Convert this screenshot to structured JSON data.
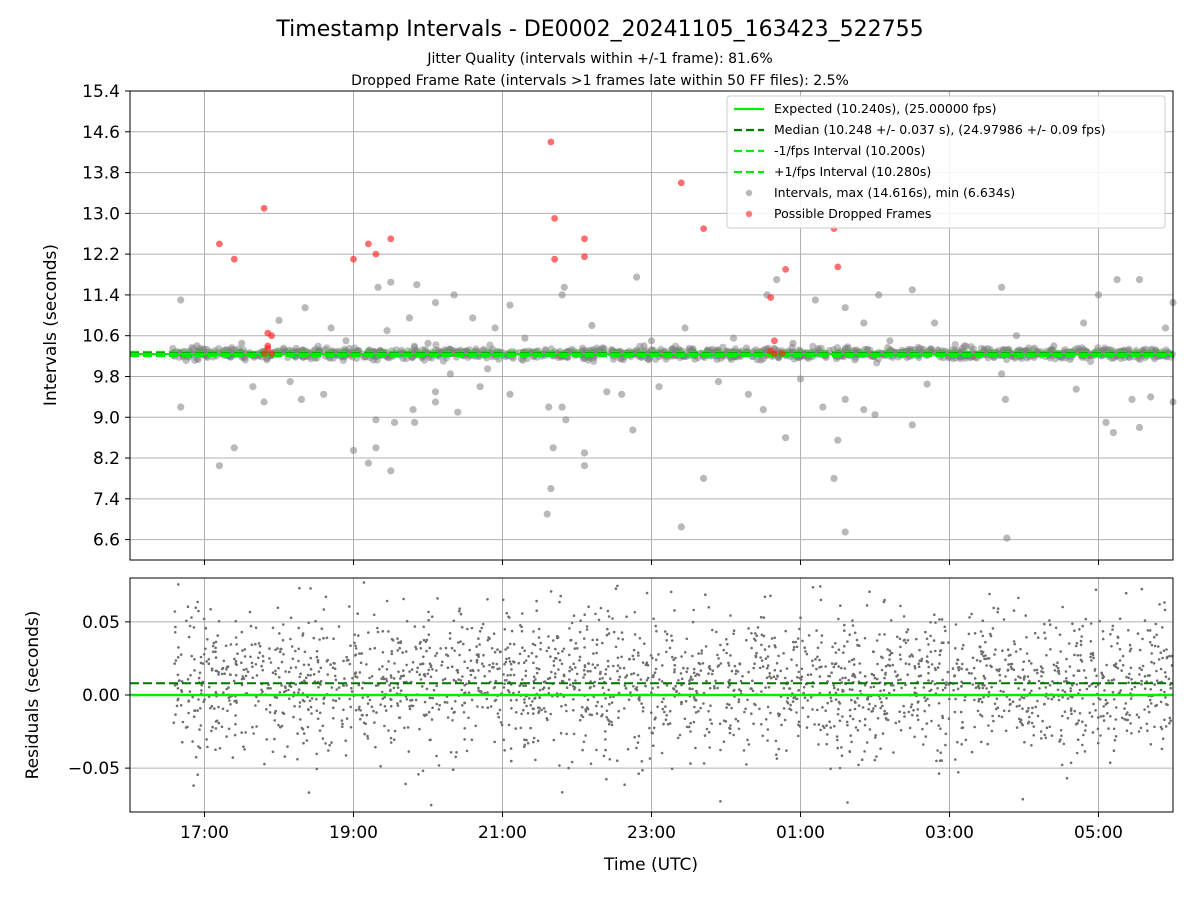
{
  "header": {
    "title": "Timestamp Intervals - DE0002_20241105_163423_522755",
    "subtitle1": "Jitter Quality (intervals within +/-1 frame): 81.6%",
    "subtitle2": "Dropped Frame Rate (intervals >1 frames late within 50 FF files): 2.5%"
  },
  "colors": {
    "expected": "#00ee00",
    "median": "#007700",
    "interval": "#00ee00",
    "points": "#808080",
    "dropped": "#ff2222"
  },
  "chart_data": [
    {
      "type": "scatter",
      "ylabel": "Intervals (seconds)",
      "x_range_hours": [
        16.0,
        30.0
      ],
      "ylim": [
        6.2,
        15.4
      ],
      "yticks": [
        6.6,
        7.4,
        8.2,
        9.0,
        9.8,
        10.6,
        11.4,
        12.2,
        13.0,
        13.8,
        14.6,
        15.4
      ],
      "ytick_labels": [
        "6.6",
        "7.4",
        "8.2",
        "9.0",
        "9.8",
        "10.6",
        "11.4",
        "12.2",
        "13.0",
        "13.8",
        "14.6",
        "15.4"
      ],
      "grid": true,
      "legend_position": "top-right",
      "lines": {
        "expected": 10.24,
        "median": 10.248,
        "minus_interval": 10.2,
        "plus_interval": 10.28
      },
      "legend": [
        {
          "key": "expected",
          "label": "Expected (10.240s), (25.00000 fps)"
        },
        {
          "key": "median",
          "label": "Median (10.248 +/- 0.037 s), (24.97986 +/- 0.09 fps)"
        },
        {
          "key": "minus",
          "label": "-1/fps Interval (10.200s)"
        },
        {
          "key": "plus",
          "label": "+1/fps Interval (10.280s)"
        },
        {
          "key": "intervals",
          "label": "Intervals, max (14.616s), min (6.634s)"
        },
        {
          "key": "dropped",
          "label": "Possible Dropped Frames"
        }
      ],
      "data_start_hour": 16.57,
      "data_end_hour": 30.0,
      "outliers": [
        [
          16.68,
          11.3
        ],
        [
          16.68,
          9.2
        ],
        [
          17.2,
          8.05
        ],
        [
          17.4,
          8.4
        ],
        [
          17.65,
          9.6
        ],
        [
          17.8,
          9.3
        ],
        [
          18.0,
          10.9
        ],
        [
          18.15,
          9.7
        ],
        [
          18.3,
          9.35
        ],
        [
          18.35,
          11.15
        ],
        [
          18.6,
          9.45
        ],
        [
          18.7,
          10.75
        ],
        [
          19.0,
          8.35
        ],
        [
          19.2,
          8.1
        ],
        [
          19.3,
          8.95
        ],
        [
          19.33,
          11.55
        ],
        [
          19.3,
          8.4
        ],
        [
          19.45,
          10.7
        ],
        [
          19.5,
          7.95
        ],
        [
          19.55,
          8.9
        ],
        [
          19.5,
          11.65
        ],
        [
          19.75,
          10.95
        ],
        [
          19.8,
          9.15
        ],
        [
          19.82,
          8.9
        ],
        [
          19.85,
          11.6
        ],
        [
          20.1,
          11.25
        ],
        [
          20.1,
          9.5
        ],
        [
          20.1,
          9.3
        ],
        [
          20.3,
          9.85
        ],
        [
          20.35,
          11.4
        ],
        [
          20.4,
          9.1
        ],
        [
          20.6,
          10.95
        ],
        [
          20.7,
          9.6
        ],
        [
          20.8,
          9.95
        ],
        [
          20.9,
          10.75
        ],
        [
          21.1,
          11.2
        ],
        [
          21.1,
          9.45
        ],
        [
          21.6,
          7.1
        ],
        [
          21.62,
          9.2
        ],
        [
          21.65,
          7.6
        ],
        [
          21.68,
          8.4
        ],
        [
          21.8,
          9.2
        ],
        [
          21.8,
          11.4
        ],
        [
          21.85,
          8.95
        ],
        [
          21.83,
          11.55
        ],
        [
          22.1,
          8.3
        ],
        [
          22.1,
          8.05
        ],
        [
          22.2,
          10.8
        ],
        [
          22.4,
          9.5
        ],
        [
          22.5,
          10.2
        ],
        [
          22.6,
          9.45
        ],
        [
          22.75,
          8.75
        ],
        [
          22.8,
          11.75
        ],
        [
          22.9,
          10.4
        ],
        [
          23.1,
          9.6
        ],
        [
          23.4,
          6.85
        ],
        [
          23.45,
          10.75
        ],
        [
          23.7,
          7.8
        ],
        [
          23.9,
          9.7
        ],
        [
          24.1,
          10.55
        ],
        [
          24.3,
          9.45
        ],
        [
          24.5,
          9.15
        ],
        [
          24.55,
          11.4
        ],
        [
          24.68,
          11.7
        ],
        [
          24.8,
          8.6
        ],
        [
          25.0,
          10.3
        ],
        [
          25.0,
          9.75
        ],
        [
          25.2,
          11.3
        ],
        [
          25.3,
          9.2
        ],
        [
          25.45,
          7.8
        ],
        [
          25.5,
          8.55
        ],
        [
          25.6,
          6.75
        ],
        [
          25.6,
          11.15
        ],
        [
          25.6,
          9.35
        ],
        [
          25.85,
          9.15
        ],
        [
          25.85,
          10.85
        ],
        [
          26.0,
          9.05
        ],
        [
          26.05,
          11.4
        ],
        [
          26.5,
          8.85
        ],
        [
          26.5,
          11.5
        ],
        [
          26.7,
          9.65
        ],
        [
          26.8,
          10.85
        ],
        [
          27.2,
          10.4
        ],
        [
          27.7,
          9.85
        ],
        [
          27.7,
          11.55
        ],
        [
          27.75,
          9.35
        ],
        [
          27.77,
          6.63
        ],
        [
          28.7,
          9.55
        ],
        [
          28.8,
          10.85
        ],
        [
          29.0,
          11.4
        ],
        [
          29.1,
          8.9
        ],
        [
          29.2,
          8.7
        ],
        [
          29.25,
          11.7
        ],
        [
          29.45,
          9.35
        ],
        [
          29.55,
          11.7
        ],
        [
          29.55,
          8.8
        ],
        [
          29.7,
          9.4
        ],
        [
          30.0,
          9.3
        ],
        [
          30.0,
          11.25
        ],
        [
          29.9,
          10.75
        ],
        [
          28.4,
          10.4
        ],
        [
          27.9,
          10.6
        ],
        [
          26.2,
          10.5
        ],
        [
          24.9,
          10.45
        ],
        [
          23.0,
          10.5
        ],
        [
          21.3,
          10.55
        ],
        [
          20.0,
          10.45
        ],
        [
          18.9,
          10.5
        ],
        [
          17.5,
          10.45
        ],
        [
          16.9,
          10.4
        ]
      ],
      "dropped": [
        [
          17.2,
          12.4
        ],
        [
          17.4,
          12.1
        ],
        [
          17.8,
          13.1
        ],
        [
          17.85,
          10.65
        ],
        [
          17.9,
          10.6
        ],
        [
          17.85,
          10.4
        ],
        [
          17.85,
          10.35
        ],
        [
          17.8,
          10.25
        ],
        [
          17.9,
          10.25
        ],
        [
          19.0,
          12.1
        ],
        [
          19.2,
          12.4
        ],
        [
          19.3,
          12.2
        ],
        [
          19.5,
          12.5
        ],
        [
          21.65,
          14.4
        ],
        [
          21.7,
          12.9
        ],
        [
          21.7,
          12.1
        ],
        [
          22.1,
          12.5
        ],
        [
          22.1,
          12.15
        ],
        [
          23.4,
          13.6
        ],
        [
          23.7,
          12.7
        ],
        [
          24.6,
          11.35
        ],
        [
          24.65,
          10.5
        ],
        [
          24.65,
          10.25
        ],
        [
          24.75,
          10.25
        ],
        [
          24.6,
          10.3
        ],
        [
          24.8,
          11.9
        ],
        [
          25.45,
          12.7
        ],
        [
          25.5,
          11.95
        ]
      ]
    },
    {
      "type": "scatter",
      "ylabel": "Residuals (seconds)",
      "xlabel": "Time (UTC)",
      "ylim": [
        -0.08,
        0.08
      ],
      "yticks": [
        -0.05,
        0.0,
        0.05
      ],
      "ytick_labels": [
        "−0.05",
        "0.00",
        "0.05"
      ],
      "xticks_hours": [
        17,
        19,
        21,
        23,
        25,
        27,
        29
      ],
      "xtick_labels": [
        "17:00",
        "19:00",
        "21:00",
        "23:00",
        "01:00",
        "03:00",
        "05:00"
      ],
      "grid": true,
      "zero_line": 0.0,
      "median_line": 0.008,
      "residual_spread": 0.025,
      "point_count": 2400
    }
  ]
}
